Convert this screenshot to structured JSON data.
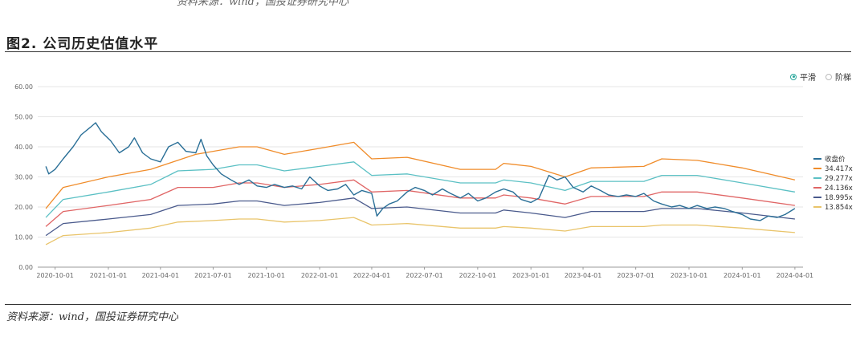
{
  "header": {
    "prev_caption": "资料来源：wind，国投证券研究中心",
    "figure_title": "图2. 公司历史估值水平"
  },
  "footer": {
    "source": "资料来源：wind，国投证券研究中心"
  },
  "mode_toggle": {
    "smooth_label": "平滑",
    "step_label": "阶梯",
    "selected": "smooth"
  },
  "chart_data": {
    "type": "line",
    "title": "",
    "xlabel": "",
    "ylabel": "",
    "ylim": [
      0,
      60
    ],
    "xlim": [
      "2020-09-01",
      "2024-04-15"
    ],
    "y_ticks": [
      "0.00",
      "10.00",
      "20.00",
      "30.00",
      "40.00",
      "50.00",
      "60.00"
    ],
    "x_ticks": [
      "2020-10-01",
      "2021-01-01",
      "2021-04-01",
      "2021-07-01",
      "2021-10-01",
      "2022-01-01",
      "2022-04-01",
      "2022-07-01",
      "2022-10-01",
      "2023-01-01",
      "2023-04-01",
      "2023-07-01",
      "2023-10-01",
      "2024-01-01",
      "2024-04-01"
    ],
    "grid": true,
    "legend_position": "right",
    "series": [
      {
        "name": "收盘价",
        "color": "#2a6f97",
        "points": [
          [
            "2020-09-15",
            33.5
          ],
          [
            "2020-09-20",
            31.0
          ],
          [
            "2020-10-01",
            32.5
          ],
          [
            "2020-10-15",
            36.0
          ],
          [
            "2020-11-01",
            40.0
          ],
          [
            "2020-11-15",
            44.0
          ],
          [
            "2020-12-01",
            46.5
          ],
          [
            "2020-12-10",
            48.0
          ],
          [
            "2020-12-20",
            45.0
          ],
          [
            "2021-01-05",
            42.0
          ],
          [
            "2021-01-20",
            38.0
          ],
          [
            "2021-02-05",
            40.0
          ],
          [
            "2021-02-15",
            43.0
          ],
          [
            "2021-03-01",
            38.0
          ],
          [
            "2021-03-15",
            36.0
          ],
          [
            "2021-04-01",
            35.0
          ],
          [
            "2021-04-15",
            40.0
          ],
          [
            "2021-05-01",
            41.5
          ],
          [
            "2021-05-15",
            38.5
          ],
          [
            "2021-06-01",
            38.0
          ],
          [
            "2021-06-10",
            42.5
          ],
          [
            "2021-06-20",
            37.0
          ],
          [
            "2021-07-01",
            34.0
          ],
          [
            "2021-07-15",
            31.0
          ],
          [
            "2021-08-01",
            29.0
          ],
          [
            "2021-08-15",
            27.5
          ],
          [
            "2021-09-01",
            29.0
          ],
          [
            "2021-09-15",
            27.0
          ],
          [
            "2021-10-01",
            26.5
          ],
          [
            "2021-10-15",
            27.5
          ],
          [
            "2021-11-01",
            26.5
          ],
          [
            "2021-11-15",
            27.0
          ],
          [
            "2021-12-01",
            26.0
          ],
          [
            "2021-12-15",
            30.0
          ],
          [
            "2022-01-01",
            27.0
          ],
          [
            "2022-01-15",
            25.5
          ],
          [
            "2022-02-01",
            26.0
          ],
          [
            "2022-02-15",
            27.5
          ],
          [
            "2022-03-01",
            24.0
          ],
          [
            "2022-03-15",
            25.5
          ],
          [
            "2022-04-01",
            24.5
          ],
          [
            "2022-04-10",
            17.0
          ],
          [
            "2022-04-20",
            19.5
          ],
          [
            "2022-05-01",
            21.0
          ],
          [
            "2022-05-15",
            22.0
          ],
          [
            "2022-06-01",
            25.0
          ],
          [
            "2022-06-15",
            26.5
          ],
          [
            "2022-07-01",
            25.5
          ],
          [
            "2022-07-15",
            24.0
          ],
          [
            "2022-08-01",
            26.0
          ],
          [
            "2022-08-15",
            24.5
          ],
          [
            "2022-09-01",
            23.0
          ],
          [
            "2022-09-15",
            24.5
          ],
          [
            "2022-10-01",
            22.0
          ],
          [
            "2022-10-15",
            23.0
          ],
          [
            "2022-11-01",
            25.0
          ],
          [
            "2022-11-15",
            26.0
          ],
          [
            "2022-12-01",
            25.0
          ],
          [
            "2022-12-15",
            22.5
          ],
          [
            "2023-01-01",
            21.5
          ],
          [
            "2023-01-15",
            23.0
          ],
          [
            "2023-02-01",
            30.5
          ],
          [
            "2023-02-15",
            29.0
          ],
          [
            "2023-03-01",
            30.0
          ],
          [
            "2023-03-15",
            26.5
          ],
          [
            "2023-04-01",
            25.0
          ],
          [
            "2023-04-15",
            27.0
          ],
          [
            "2023-05-01",
            25.5
          ],
          [
            "2023-05-15",
            24.0
          ],
          [
            "2023-06-01",
            23.5
          ],
          [
            "2023-06-15",
            24.0
          ],
          [
            "2023-07-01",
            23.5
          ],
          [
            "2023-07-15",
            24.5
          ],
          [
            "2023-08-01",
            22.0
          ],
          [
            "2023-08-15",
            21.0
          ],
          [
            "2023-09-01",
            20.0
          ],
          [
            "2023-09-15",
            20.5
          ],
          [
            "2023-10-01",
            19.5
          ],
          [
            "2023-10-15",
            20.5
          ],
          [
            "2023-11-01",
            19.5
          ],
          [
            "2023-11-15",
            20.0
          ],
          [
            "2023-12-01",
            19.5
          ],
          [
            "2023-12-15",
            18.5
          ],
          [
            "2024-01-01",
            17.5
          ],
          [
            "2024-01-15",
            16.0
          ],
          [
            "2024-02-01",
            15.5
          ],
          [
            "2024-02-15",
            17.0
          ],
          [
            "2024-03-01",
            16.5
          ],
          [
            "2024-03-15",
            17.5
          ],
          [
            "2024-04-01",
            19.5
          ]
        ]
      },
      {
        "name": "34.417x",
        "color": "#f08c2a",
        "points": [
          [
            "2020-09-15",
            19.5
          ],
          [
            "2020-10-15",
            26.5
          ],
          [
            "2021-01-01",
            30.0
          ],
          [
            "2021-03-15",
            32.5
          ],
          [
            "2021-06-01",
            37.5
          ],
          [
            "2021-08-15",
            40.0
          ],
          [
            "2021-09-15",
            40.0
          ],
          [
            "2021-11-01",
            37.5
          ],
          [
            "2022-01-01",
            39.5
          ],
          [
            "2022-03-01",
            41.5
          ],
          [
            "2022-04-01",
            36.0
          ],
          [
            "2022-06-01",
            36.5
          ],
          [
            "2022-09-01",
            32.5
          ],
          [
            "2022-11-01",
            32.5
          ],
          [
            "2022-11-15",
            34.5
          ],
          [
            "2023-01-01",
            33.5
          ],
          [
            "2023-03-01",
            30.0
          ],
          [
            "2023-04-15",
            33.0
          ],
          [
            "2023-07-15",
            33.5
          ],
          [
            "2023-08-15",
            36.0
          ],
          [
            "2023-10-15",
            35.5
          ],
          [
            "2024-01-01",
            33.0
          ],
          [
            "2024-04-01",
            29.0
          ]
        ]
      },
      {
        "name": "29.277x",
        "color": "#5bc0c4",
        "points": [
          [
            "2020-09-15",
            16.5
          ],
          [
            "2020-10-15",
            22.5
          ],
          [
            "2021-01-01",
            25.0
          ],
          [
            "2021-03-15",
            27.5
          ],
          [
            "2021-05-01",
            32.0
          ],
          [
            "2021-07-01",
            32.5
          ],
          [
            "2021-08-15",
            34.0
          ],
          [
            "2021-09-15",
            34.0
          ],
          [
            "2021-11-01",
            32.0
          ],
          [
            "2022-01-01",
            33.5
          ],
          [
            "2022-03-01",
            35.0
          ],
          [
            "2022-04-01",
            30.5
          ],
          [
            "2022-06-01",
            31.0
          ],
          [
            "2022-09-01",
            28.0
          ],
          [
            "2022-11-01",
            28.0
          ],
          [
            "2022-11-15",
            29.0
          ],
          [
            "2023-01-01",
            28.0
          ],
          [
            "2023-03-01",
            25.5
          ],
          [
            "2023-04-15",
            28.5
          ],
          [
            "2023-07-15",
            28.5
          ],
          [
            "2023-08-15",
            30.5
          ],
          [
            "2023-10-15",
            30.5
          ],
          [
            "2024-01-01",
            28.0
          ],
          [
            "2024-04-01",
            25.0
          ]
        ]
      },
      {
        "name": "24.136x",
        "color": "#e06565",
        "points": [
          [
            "2020-09-15",
            13.5
          ],
          [
            "2020-10-15",
            18.5
          ],
          [
            "2021-01-01",
            20.5
          ],
          [
            "2021-03-15",
            22.5
          ],
          [
            "2021-05-01",
            26.5
          ],
          [
            "2021-07-01",
            26.5
          ],
          [
            "2021-08-15",
            28.0
          ],
          [
            "2021-09-15",
            28.0
          ],
          [
            "2021-11-01",
            26.5
          ],
          [
            "2022-01-01",
            27.5
          ],
          [
            "2022-03-01",
            29.0
          ],
          [
            "2022-04-01",
            25.0
          ],
          [
            "2022-06-01",
            25.5
          ],
          [
            "2022-09-01",
            23.0
          ],
          [
            "2022-11-01",
            23.0
          ],
          [
            "2022-11-15",
            24.0
          ],
          [
            "2023-01-01",
            23.0
          ],
          [
            "2023-03-01",
            21.0
          ],
          [
            "2023-04-15",
            23.5
          ],
          [
            "2023-07-15",
            23.5
          ],
          [
            "2023-08-15",
            25.0
          ],
          [
            "2023-10-15",
            25.0
          ],
          [
            "2024-01-01",
            23.0
          ],
          [
            "2024-04-01",
            20.5
          ]
        ]
      },
      {
        "name": "18.995x",
        "color": "#4a5a8c",
        "points": [
          [
            "2020-09-15",
            10.5
          ],
          [
            "2020-10-15",
            14.5
          ],
          [
            "2021-01-01",
            16.0
          ],
          [
            "2021-03-15",
            17.5
          ],
          [
            "2021-05-01",
            20.5
          ],
          [
            "2021-07-01",
            21.0
          ],
          [
            "2021-08-15",
            22.0
          ],
          [
            "2021-09-15",
            22.0
          ],
          [
            "2021-11-01",
            20.5
          ],
          [
            "2022-01-01",
            21.5
          ],
          [
            "2022-03-01",
            23.0
          ],
          [
            "2022-04-01",
            19.5
          ],
          [
            "2022-06-01",
            20.0
          ],
          [
            "2022-09-01",
            18.0
          ],
          [
            "2022-11-01",
            18.0
          ],
          [
            "2022-11-15",
            19.0
          ],
          [
            "2023-01-01",
            18.0
          ],
          [
            "2023-03-01",
            16.5
          ],
          [
            "2023-04-15",
            18.5
          ],
          [
            "2023-07-15",
            18.5
          ],
          [
            "2023-08-15",
            19.5
          ],
          [
            "2023-10-15",
            19.5
          ],
          [
            "2024-01-01",
            18.0
          ],
          [
            "2024-04-01",
            16.0
          ]
        ]
      },
      {
        "name": "13.854x",
        "color": "#e9c46a",
        "points": [
          [
            "2020-09-15",
            7.5
          ],
          [
            "2020-10-15",
            10.5
          ],
          [
            "2021-01-01",
            11.5
          ],
          [
            "2021-03-15",
            13.0
          ],
          [
            "2021-05-01",
            15.0
          ],
          [
            "2021-07-01",
            15.5
          ],
          [
            "2021-08-15",
            16.0
          ],
          [
            "2021-09-15",
            16.0
          ],
          [
            "2021-11-01",
            15.0
          ],
          [
            "2022-01-01",
            15.5
          ],
          [
            "2022-03-01",
            16.5
          ],
          [
            "2022-04-01",
            14.0
          ],
          [
            "2022-06-01",
            14.5
          ],
          [
            "2022-09-01",
            13.0
          ],
          [
            "2022-11-01",
            13.0
          ],
          [
            "2022-11-15",
            13.5
          ],
          [
            "2023-01-01",
            13.0
          ],
          [
            "2023-03-01",
            12.0
          ],
          [
            "2023-04-15",
            13.5
          ],
          [
            "2023-07-15",
            13.5
          ],
          [
            "2023-08-15",
            14.0
          ],
          [
            "2023-10-15",
            14.0
          ],
          [
            "2024-01-01",
            13.0
          ],
          [
            "2024-04-01",
            11.5
          ]
        ]
      }
    ]
  }
}
